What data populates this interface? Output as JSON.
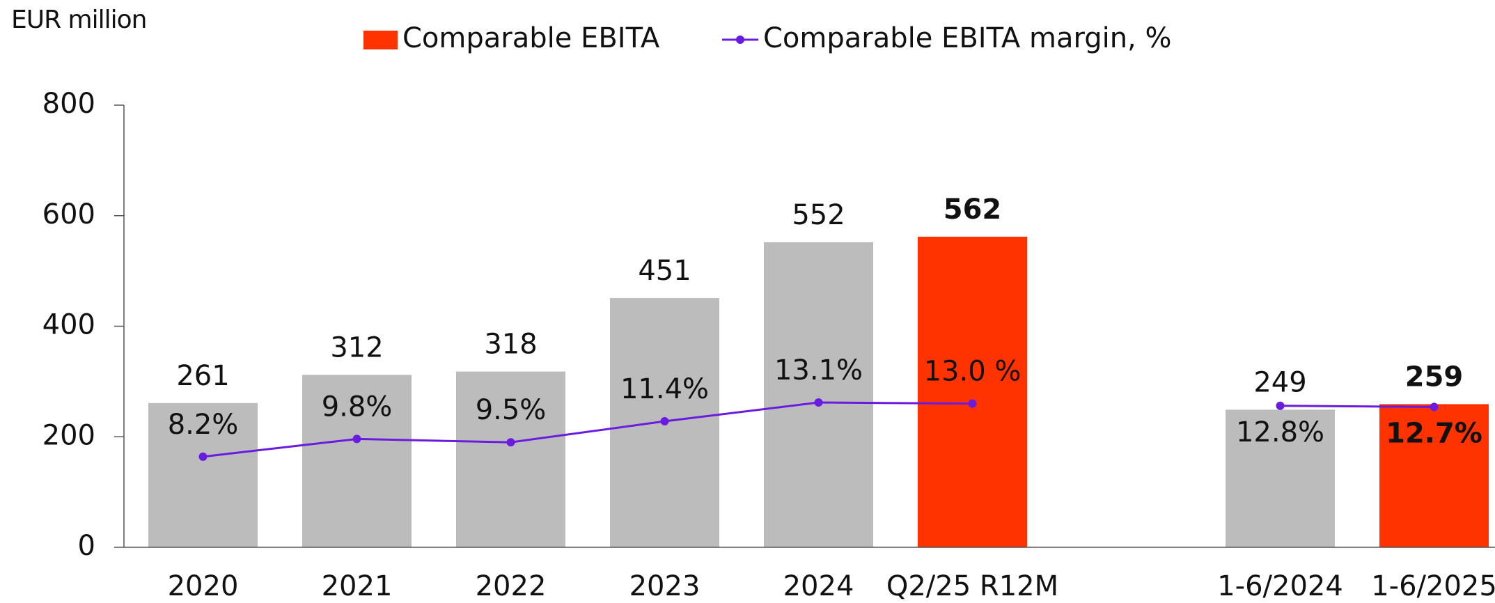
{
  "chart_data": {
    "type": "bar",
    "y_axis_label": "EUR million",
    "categories": [
      "2020",
      "2021",
      "2022",
      "2023",
      "2024",
      "Q2/25 R12M",
      null,
      "1-6/2024",
      "1-6/2025"
    ],
    "ylim": [
      0,
      800
    ],
    "yticks": [
      0,
      200,
      400,
      600,
      800
    ],
    "y2lim": [
      0,
      40
    ],
    "series": [
      {
        "name": "Comparable EBITA",
        "color": "#ff3300",
        "values": [
          261,
          312,
          318,
          451,
          552,
          562,
          null,
          249,
          259
        ],
        "colors": [
          "#bcbcbc",
          "#bcbcbc",
          "#bcbcbc",
          "#bcbcbc",
          "#bcbcbc",
          "#ff3300",
          null,
          "#bcbcbc",
          "#ff3300"
        ]
      },
      {
        "name": "Comparable EBITA margin, %",
        "color": "#6a1be0",
        "axis": "y2",
        "values": [
          8.2,
          9.8,
          9.5,
          11.4,
          13.1,
          13.0,
          null,
          12.8,
          12.7
        ],
        "value_labels": [
          "8.2%",
          "9.8%",
          "9.5%",
          "11.4%",
          "13.1%",
          "13.0 %",
          null,
          "12.8%",
          "12.7%"
        ]
      }
    ]
  }
}
